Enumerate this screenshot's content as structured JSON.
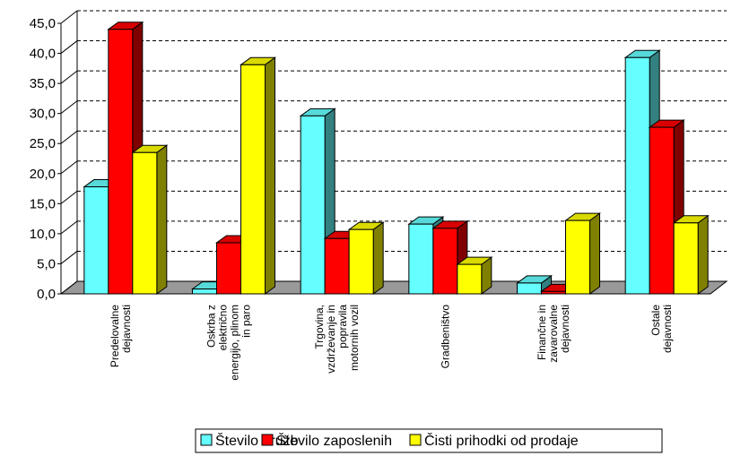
{
  "chart_data": {
    "type": "bar3d",
    "categories": [
      [
        "Predelovalne",
        "dejavnosti"
      ],
      [
        "Oskrba z",
        "električno",
        "energijo, plinom",
        "in paro"
      ],
      [
        "Trgovina,",
        "vzdrževanje in",
        "popravila",
        "motornih vozil"
      ],
      [
        "Gradbeništvo"
      ],
      [
        "Finančne in",
        "zavarovalne",
        "dejavnosti"
      ],
      [
        "Ostale",
        "dejavnosti"
      ]
    ],
    "series": [
      {
        "name": "Število družb",
        "color": "#66ffff",
        "values": [
          17.8,
          0.8,
          29.6,
          11.6,
          1.8,
          39.3
        ]
      },
      {
        "name": "Število zaposlenih",
        "color": "#ff0000",
        "values": [
          44.0,
          8.5,
          9.2,
          10.9,
          0.4,
          27.7
        ]
      },
      {
        "name": "Čisti prihodki od prodaje",
        "color": "#ffff00",
        "values": [
          23.5,
          38.1,
          10.7,
          4.9,
          12.2,
          11.8
        ]
      }
    ],
    "ylim": [
      0,
      45
    ],
    "yticks": [
      {
        "value": 0,
        "label": "0,0"
      },
      {
        "value": 5,
        "label": "5,0"
      },
      {
        "value": 10,
        "label": "10,0"
      },
      {
        "value": 15,
        "label": "15,0"
      },
      {
        "value": 20,
        "label": "20,0"
      },
      {
        "value": 25,
        "label": "25,0"
      },
      {
        "value": 30,
        "label": "30,0"
      },
      {
        "value": 35,
        "label": "35,0"
      },
      {
        "value": 40,
        "label": "40,0"
      },
      {
        "value": 45,
        "label": "45,0"
      }
    ],
    "grid": true,
    "legend": "bottom"
  }
}
